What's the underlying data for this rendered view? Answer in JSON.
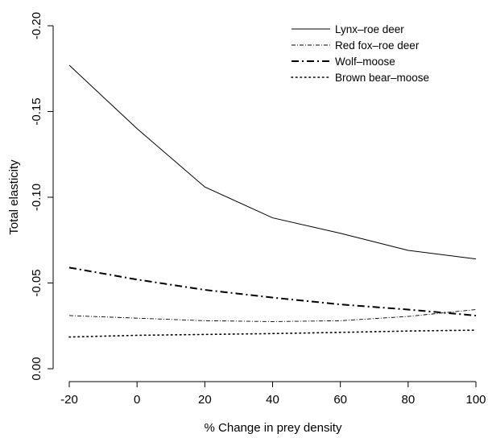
{
  "chart_data": {
    "type": "line",
    "xlabel": "% Change in prey density",
    "ylabel": "Total elasticity",
    "xlim": [
      -20,
      100
    ],
    "ylim": [
      0.0,
      -0.2
    ],
    "x_ticks": [
      -20,
      0,
      20,
      40,
      60,
      80,
      100
    ],
    "x_tick_labels": [
      "-20",
      "0",
      "20",
      "40",
      "60",
      "80",
      "100"
    ],
    "y_ticks": [
      0.0,
      -0.05,
      -0.1,
      -0.15,
      -0.2
    ],
    "y_tick_labels": [
      "0.00",
      "-0.05",
      "-0.10",
      "-0.15",
      "-0.20"
    ],
    "grid": false,
    "legend_position": "top-right",
    "series": [
      {
        "name": "Lynx–roe deer",
        "line_style": "solid",
        "x": [
          -20,
          0,
          20,
          40,
          60,
          80,
          100
        ],
        "y": [
          -0.177,
          -0.14,
          -0.106,
          -0.088,
          -0.079,
          -0.069,
          -0.064
        ]
      },
      {
        "name": "Red fox–roe deer",
        "line_style": "dashdot-fine",
        "x": [
          -20,
          0,
          20,
          40,
          60,
          80,
          100
        ],
        "y": [
          -0.031,
          -0.0295,
          -0.028,
          -0.0275,
          -0.028,
          -0.0305,
          -0.0345
        ]
      },
      {
        "name": "Wolf–moose",
        "line_style": "dashdot-bold",
        "x": [
          -20,
          0,
          20,
          40,
          60,
          80,
          100
        ],
        "y": [
          -0.059,
          -0.052,
          -0.046,
          -0.0415,
          -0.0375,
          -0.0345,
          -0.031
        ]
      },
      {
        "name": "Brown bear–moose",
        "line_style": "dotted",
        "x": [
          -20,
          0,
          20,
          40,
          60,
          80,
          100
        ],
        "y": [
          -0.0185,
          -0.0195,
          -0.02,
          -0.0205,
          -0.0212,
          -0.022,
          -0.0225
        ]
      }
    ]
  }
}
